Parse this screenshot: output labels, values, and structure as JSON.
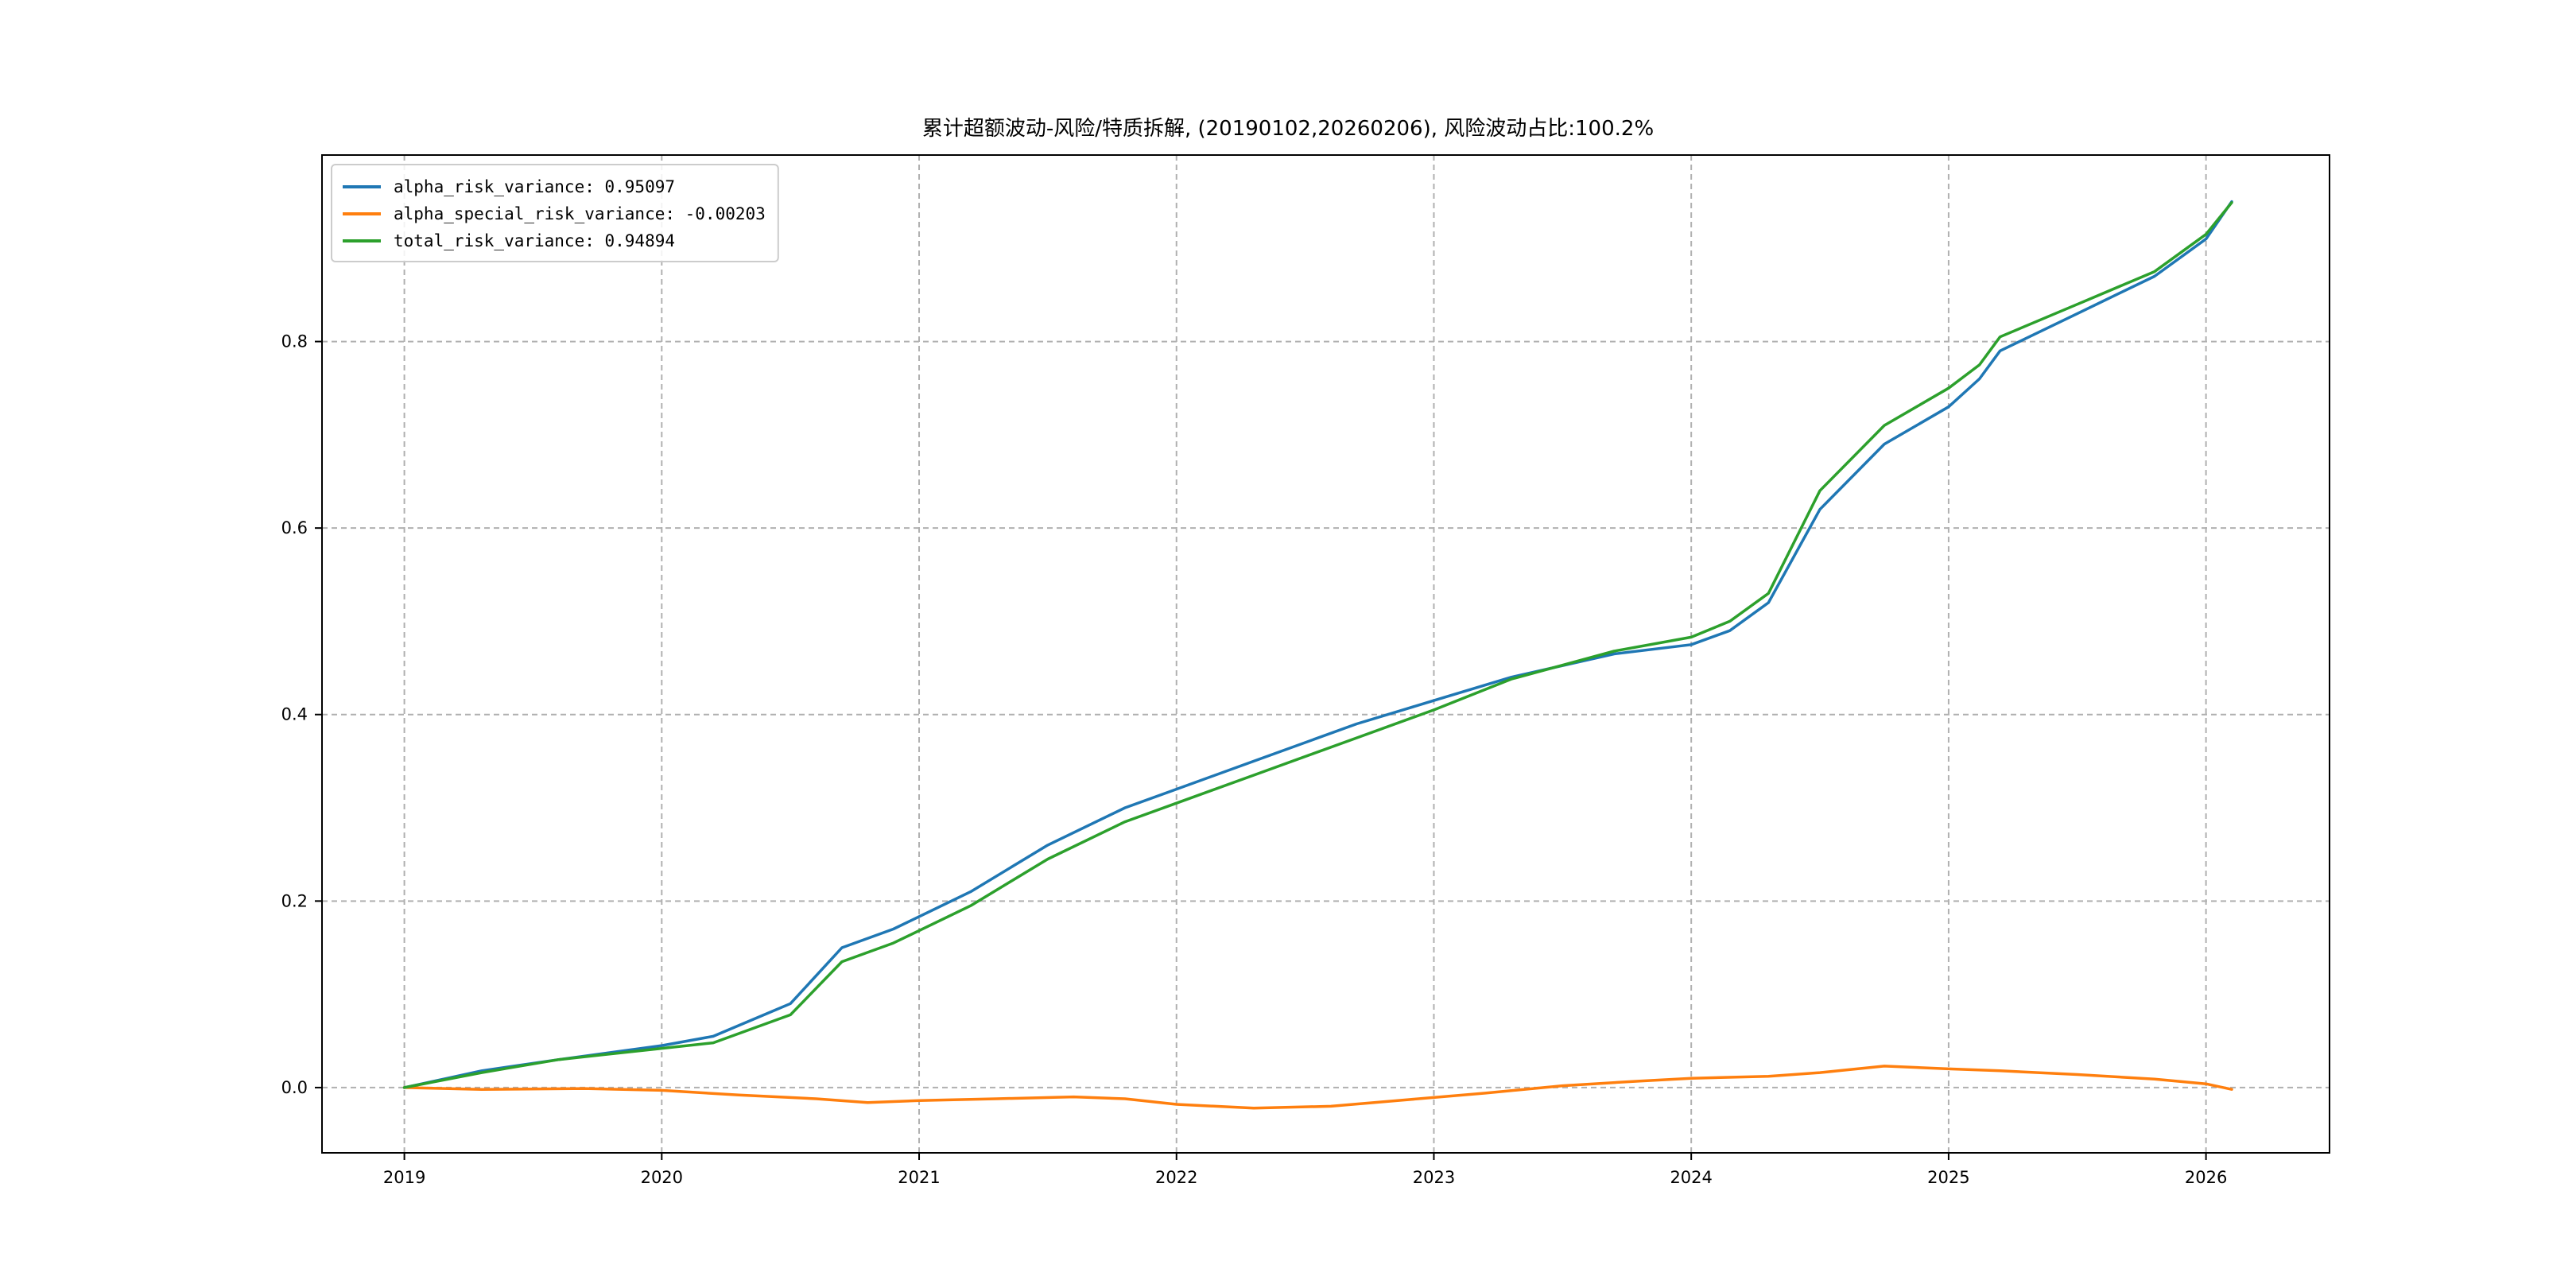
{
  "chart_data": {
    "type": "line",
    "title": "累计超额波动-风险/特质拆解, (20190102,20260206), 风险波动占比:100.2%",
    "xlabel": "",
    "ylabel": "",
    "xlim": [
      2018.68,
      2026.48
    ],
    "ylim": [
      -0.07,
      1.0
    ],
    "x_ticks": [
      2019,
      2020,
      2021,
      2022,
      2023,
      2024,
      2025,
      2026
    ],
    "x_tick_labels": [
      "2019",
      "2020",
      "2021",
      "2022",
      "2023",
      "2024",
      "2025",
      "2026"
    ],
    "y_ticks": [
      0.0,
      0.2,
      0.4,
      0.6,
      0.8
    ],
    "y_tick_labels": [
      "0.0",
      "0.2",
      "0.4",
      "0.6",
      "0.8"
    ],
    "grid": true,
    "legend_position": "top-left",
    "colors": {
      "alpha_risk_variance": "#1f77b4",
      "alpha_special_risk_variance": "#ff7f0e",
      "total_risk_variance": "#2ca02c"
    },
    "series": [
      {
        "name": "alpha_risk_variance",
        "legend_label": "alpha_risk_variance: 0.95097",
        "color": "#1f77b4",
        "x": [
          2019.0,
          2019.3,
          2019.6,
          2020.0,
          2020.2,
          2020.5,
          2020.7,
          2020.9,
          2021.2,
          2021.5,
          2021.8,
          2022.0,
          2022.3,
          2022.7,
          2023.0,
          2023.3,
          2023.7,
          2024.0,
          2024.15,
          2024.3,
          2024.5,
          2024.75,
          2025.0,
          2025.12,
          2025.2,
          2025.5,
          2025.8,
          2026.0,
          2026.1
        ],
        "y": [
          0.0,
          0.018,
          0.03,
          0.045,
          0.055,
          0.09,
          0.15,
          0.17,
          0.21,
          0.26,
          0.3,
          0.32,
          0.35,
          0.39,
          0.415,
          0.44,
          0.465,
          0.475,
          0.49,
          0.52,
          0.62,
          0.69,
          0.73,
          0.76,
          0.79,
          0.83,
          0.87,
          0.91,
          0.95
        ]
      },
      {
        "name": "alpha_special_risk_variance",
        "legend_label": "alpha_special_risk_variance: -0.00203",
        "color": "#ff7f0e",
        "x": [
          2019.0,
          2019.3,
          2019.7,
          2020.0,
          2020.3,
          2020.6,
          2020.8,
          2021.0,
          2021.3,
          2021.6,
          2021.8,
          2022.0,
          2022.3,
          2022.6,
          2022.9,
          2023.2,
          2023.5,
          2023.8,
          2024.0,
          2024.3,
          2024.5,
          2024.75,
          2025.0,
          2025.2,
          2025.5,
          2025.8,
          2026.0,
          2026.1
        ],
        "y": [
          0.0,
          -0.002,
          -0.001,
          -0.003,
          -0.008,
          -0.012,
          -0.016,
          -0.014,
          -0.012,
          -0.01,
          -0.012,
          -0.018,
          -0.022,
          -0.02,
          -0.013,
          -0.006,
          0.002,
          0.007,
          0.01,
          0.012,
          0.016,
          0.023,
          0.02,
          0.018,
          0.014,
          0.009,
          0.004,
          -0.002
        ]
      },
      {
        "name": "total_risk_variance",
        "legend_label": "total_risk_variance: 0.94894",
        "color": "#2ca02c",
        "x": [
          2019.0,
          2019.3,
          2019.6,
          2020.0,
          2020.2,
          2020.5,
          2020.7,
          2020.9,
          2021.2,
          2021.5,
          2021.8,
          2022.0,
          2022.3,
          2022.7,
          2023.0,
          2023.3,
          2023.7,
          2024.0,
          2024.15,
          2024.3,
          2024.5,
          2024.75,
          2025.0,
          2025.12,
          2025.2,
          2025.5,
          2025.8,
          2026.0,
          2026.1
        ],
        "y": [
          0.0,
          0.016,
          0.03,
          0.042,
          0.048,
          0.078,
          0.135,
          0.155,
          0.195,
          0.245,
          0.285,
          0.305,
          0.335,
          0.375,
          0.405,
          0.438,
          0.468,
          0.483,
          0.5,
          0.53,
          0.64,
          0.71,
          0.75,
          0.775,
          0.805,
          0.84,
          0.875,
          0.915,
          0.949
        ]
      }
    ]
  }
}
